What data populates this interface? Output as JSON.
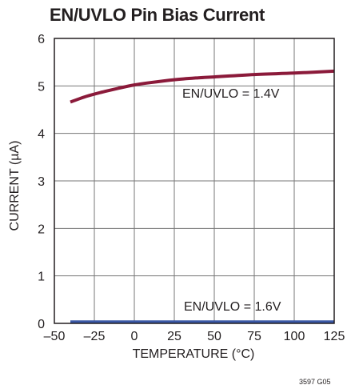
{
  "chart_data": {
    "type": "line",
    "title": "EN/UVLO Pin Bias Current",
    "xlabel": "TEMPERATURE (°C)",
    "ylabel": "CURRENT (µA)",
    "xlim": [
      -50,
      125
    ],
    "ylim": [
      0,
      6
    ],
    "x_ticks": [
      -50,
      -25,
      0,
      25,
      50,
      75,
      100,
      125
    ],
    "x_tick_labels": [
      "–50",
      "–25",
      "0",
      "25",
      "50",
      "75",
      "100",
      "125"
    ],
    "y_ticks": [
      0,
      1,
      2,
      3,
      4,
      5,
      6
    ],
    "y_tick_labels": [
      "0",
      "1",
      "2",
      "3",
      "4",
      "5",
      "6"
    ],
    "grid": true,
    "series": [
      {
        "name": "EN/UVLO = 1.4V",
        "color": "#8b1a3a",
        "x": [
          -40,
          -30,
          -20,
          -10,
          0,
          10,
          25,
          40,
          50,
          75,
          100,
          125
        ],
        "y": [
          4.66,
          4.78,
          4.87,
          4.95,
          5.02,
          5.07,
          5.13,
          5.17,
          5.19,
          5.24,
          5.27,
          5.31
        ]
      },
      {
        "name": "EN/UVLO = 1.6V",
        "color": "#3a58a6",
        "x": [
          -40,
          125
        ],
        "y": [
          0.03,
          0.03
        ]
      }
    ],
    "annotations": [
      "EN/UVLO = 1.4V",
      "EN/UVLO = 1.6V"
    ]
  },
  "figure_code": "3597 G05"
}
